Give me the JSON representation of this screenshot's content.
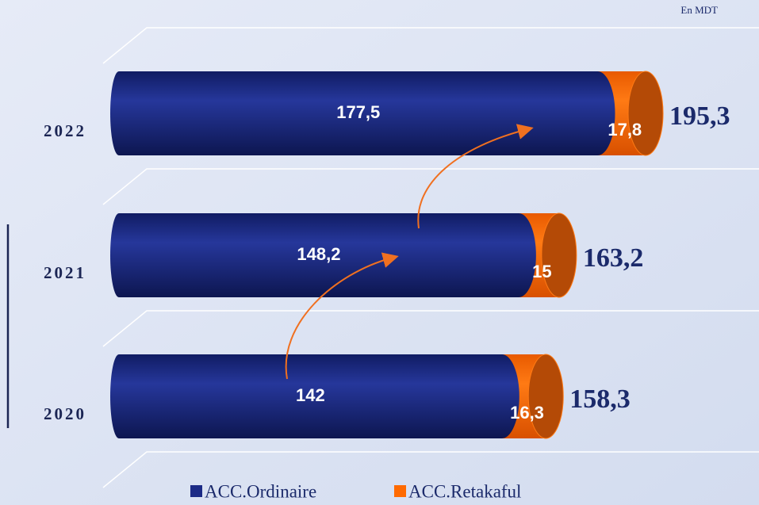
{
  "chart_data": {
    "type": "stacked_cylinder_bar",
    "subtitle": "En MDT",
    "categories": [
      "2020",
      "2021",
      "2022"
    ],
    "series": [
      {
        "name": "ACC.Ordinaire",
        "color": "#1c2b86",
        "values": [
          142,
          148.2,
          177.5
        ],
        "value_labels": [
          "142",
          "148,2",
          "177,5"
        ]
      },
      {
        "name": "ACC.Retakaful",
        "color": "#ff6a00",
        "values": [
          16.3,
          15,
          17.8
        ],
        "value_labels": [
          "16,3",
          "15",
          "17,8"
        ]
      }
    ],
    "totals": [
      158.3,
      163.2,
      195.3
    ],
    "total_labels": [
      "158,3",
      "163,2",
      "195,3"
    ]
  }
}
